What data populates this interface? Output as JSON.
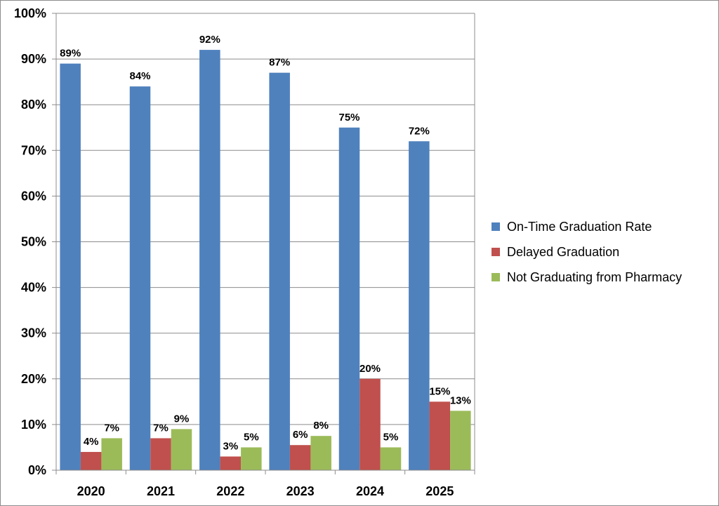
{
  "chart_data": {
    "type": "bar",
    "title": "",
    "xlabel": "",
    "ylabel": "",
    "categories": [
      "2020",
      "2021",
      "2022",
      "2023",
      "2024",
      "2025"
    ],
    "ylim": [
      0,
      100
    ],
    "yticks": [
      0,
      10,
      20,
      30,
      40,
      50,
      60,
      70,
      80,
      90,
      100
    ],
    "ytick_labels": [
      "0%",
      "10%",
      "20%",
      "30%",
      "40%",
      "50%",
      "60%",
      "70%",
      "80%",
      "90%",
      "100%"
    ],
    "grid": true,
    "legend_position": "right",
    "series": [
      {
        "name": "On-Time Graduation Rate",
        "color": "#4F81BD",
        "values": [
          89,
          84,
          92,
          87,
          75,
          72
        ],
        "labels": [
          "89%",
          "84%",
          "92%",
          "87%",
          "75%",
          "72%"
        ]
      },
      {
        "name": "Delayed Graduation",
        "color": "#C0504D",
        "values": [
          4,
          7,
          3,
          5.5,
          20,
          15
        ],
        "labels": [
          "4%",
          "7%",
          "3%",
          "6%",
          "20%",
          "15%"
        ]
      },
      {
        "name": "Not Graduating from Pharmacy",
        "color": "#9BBB59",
        "values": [
          7,
          9,
          5,
          7.5,
          5,
          13
        ],
        "labels": [
          "7%",
          "9%",
          "5%",
          "8%",
          "5%",
          "13%"
        ]
      }
    ]
  }
}
